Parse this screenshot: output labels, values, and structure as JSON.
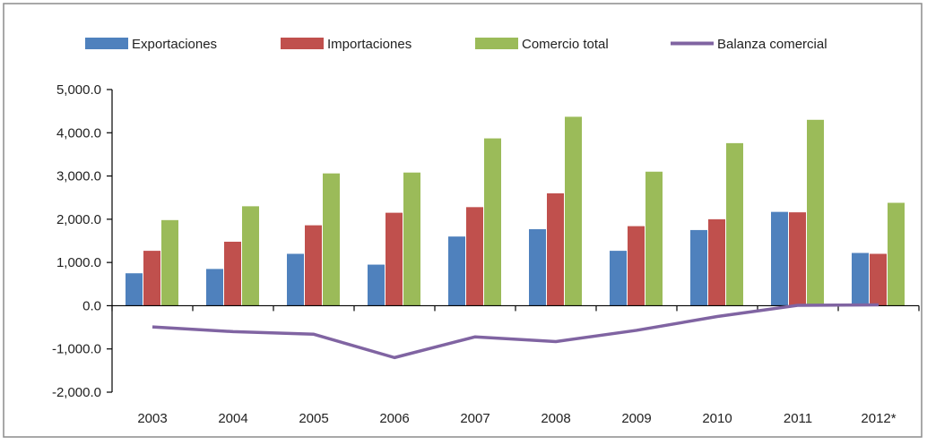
{
  "chart_data": {
    "type": "bar",
    "categories": [
      "2003",
      "2004",
      "2005",
      "2006",
      "2007",
      "2008",
      "2009",
      "2010",
      "2011",
      "2012*"
    ],
    "series": [
      {
        "name": "Exportaciones",
        "type": "bar",
        "color": "#4F81BD",
        "values": [
          750,
          850,
          1200,
          950,
          1600,
          1770,
          1270,
          1750,
          2170,
          1220
        ]
      },
      {
        "name": "Importaciones",
        "type": "bar",
        "color": "#C0504D",
        "values": [
          1270,
          1480,
          1860,
          2150,
          2280,
          2600,
          1840,
          2000,
          2160,
          1200
        ]
      },
      {
        "name": "Comercio total",
        "type": "bar",
        "color": "#9BBB59",
        "values": [
          1980,
          2300,
          3060,
          3080,
          3870,
          4370,
          3100,
          3760,
          4300,
          2380
        ]
      },
      {
        "name": "Balanza comercial",
        "type": "line",
        "color": "#8064A2",
        "values": [
          -490,
          -600,
          -660,
          -1200,
          -720,
          -830,
          -570,
          -250,
          10,
          20
        ]
      }
    ],
    "ylim": [
      -2000,
      5000
    ],
    "yticks": [
      5000,
      4000,
      3000,
      2000,
      1000,
      0,
      -1000,
      -2000
    ],
    "ytick_labels": [
      "5,000.0",
      "4,000.0",
      "3,000.0",
      "2,000.0",
      "1,000.0",
      "0.0",
      "-1,000.0",
      "-2,000.0"
    ],
    "legend_position": "top",
    "grid": false,
    "title": "",
    "xlabel": "",
    "ylabel": ""
  }
}
